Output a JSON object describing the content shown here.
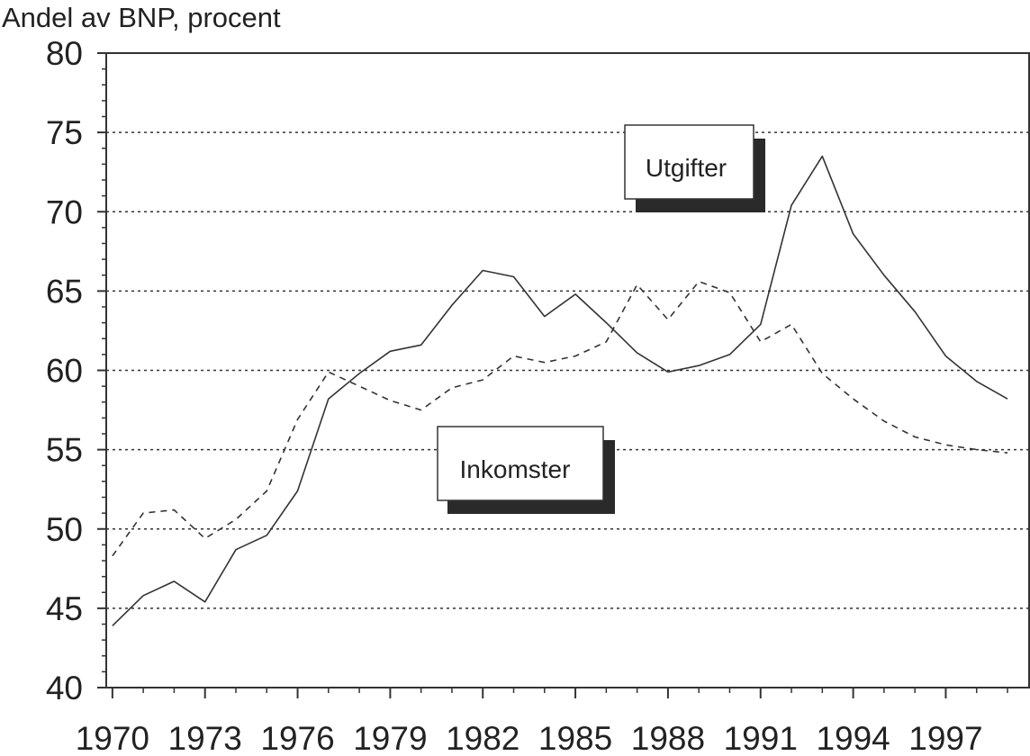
{
  "chart_data": {
    "type": "line",
    "ylabel": "Andel av BNP, procent",
    "xlabel": "",
    "title": "",
    "ylim": [
      40,
      80
    ],
    "xlim": [
      1969.8,
      1999.7
    ],
    "yticks": [
      40,
      45,
      50,
      55,
      60,
      65,
      70,
      75,
      80
    ],
    "xticks": [
      1970,
      1973,
      1976,
      1979,
      1982,
      1985,
      1988,
      1991,
      1994,
      1997
    ],
    "grid": "horizontal dotted",
    "legend": "inline labels",
    "series": [
      {
        "name": "Utgifter",
        "line_style": "solid",
        "color": "#333333",
        "x": [
          1970,
          1971,
          1972,
          1973,
          1974,
          1975,
          1976,
          1977,
          1978,
          1979,
          1980,
          1981,
          1982,
          1983,
          1984,
          1985,
          1986,
          1987,
          1988,
          1989,
          1990,
          1991,
          1992,
          1993,
          1994,
          1995,
          1996,
          1997,
          1998,
          1999
        ],
        "values": [
          43.9,
          45.8,
          46.7,
          45.4,
          48.7,
          49.6,
          52.4,
          58.2,
          59.8,
          61.2,
          61.6,
          64.1,
          66.3,
          65.9,
          63.4,
          64.8,
          63.0,
          61.1,
          59.9,
          60.3,
          61.0,
          62.9,
          70.4,
          73.5,
          68.6,
          66.0,
          63.7,
          60.9,
          59.3,
          58.2
        ]
      },
      {
        "name": "Inkomster",
        "line_style": "dashed",
        "color": "#333333",
        "x": [
          1970,
          1971,
          1972,
          1973,
          1974,
          1975,
          1976,
          1977,
          1978,
          1979,
          1980,
          1981,
          1982,
          1983,
          1984,
          1985,
          1986,
          1987,
          1988,
          1989,
          1990,
          1991,
          1992,
          1993,
          1994,
          1995,
          1996,
          1997,
          1998,
          1999
        ],
        "values": [
          48.3,
          51.0,
          51.2,
          49.4,
          50.6,
          52.4,
          56.9,
          59.9,
          59.0,
          58.1,
          57.5,
          58.9,
          59.4,
          60.9,
          60.5,
          60.9,
          61.8,
          65.4,
          63.2,
          65.6,
          64.9,
          61.8,
          62.9,
          59.8,
          58.2,
          56.8,
          55.8,
          55.3,
          55.0,
          54.8
        ]
      }
    ],
    "annotations": [
      {
        "text": "Utgifter",
        "series": "Utgifter"
      },
      {
        "text": "Inkomster",
        "series": "Inkomster"
      }
    ]
  }
}
